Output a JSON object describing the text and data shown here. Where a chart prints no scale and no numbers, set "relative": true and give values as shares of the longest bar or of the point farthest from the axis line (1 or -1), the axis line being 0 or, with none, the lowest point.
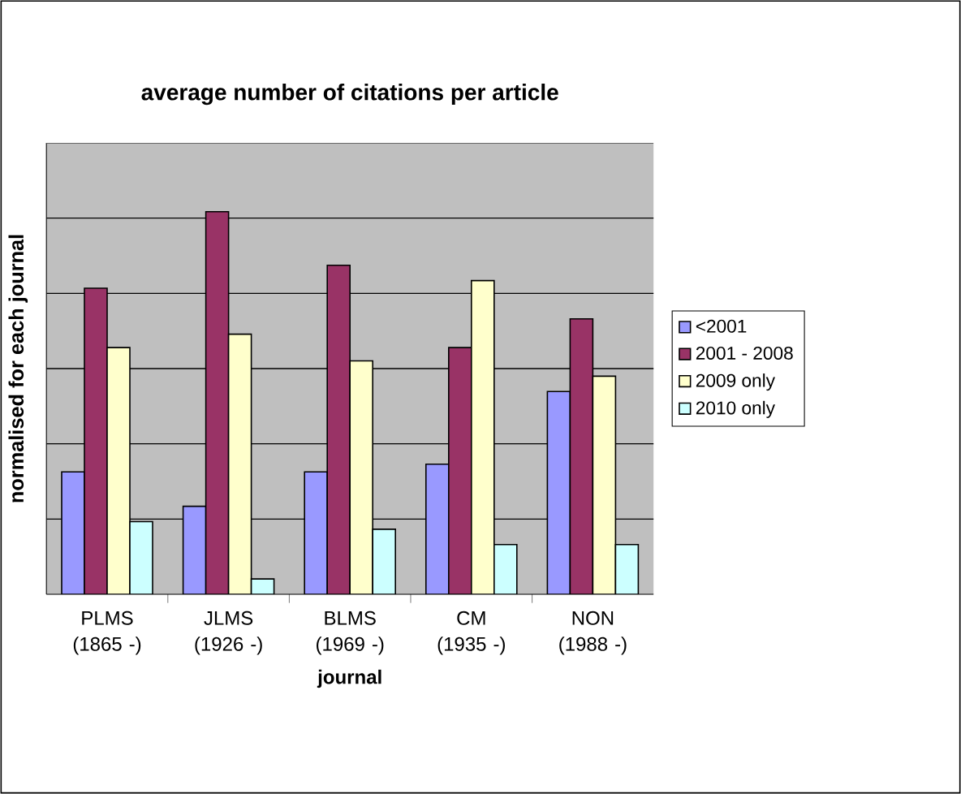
{
  "chart_data": {
    "type": "bar",
    "title": "average number of citations per article",
    "xlabel": "journal",
    "ylabel": "normalised for each journal",
    "categories": [
      "PLMS (1865 -)",
      "JLMS (1926 -)",
      "BLMS (1969 -)",
      "CM (1935 -)",
      "NON (1988 -)"
    ],
    "relative": true,
    "grid": "y",
    "legend": "right",
    "series": [
      {
        "name": "<2001",
        "color": "#9999ff",
        "values": [
          0.32,
          0.23,
          0.32,
          0.34,
          0.53
        ]
      },
      {
        "name": "2001 - 2008",
        "color": "#993366",
        "values": [
          0.8,
          1,
          0.86,
          0.645,
          0.72
        ]
      },
      {
        "name": "2009 only",
        "color": "#ffffcc",
        "values": [
          0.645,
          0.68,
          0.61,
          0.82,
          0.57
        ]
      },
      {
        "name": "2010 only",
        "color": "#ccffff",
        "values": [
          0.19,
          0.04,
          0.17,
          0.13,
          0.13
        ]
      }
    ]
  }
}
